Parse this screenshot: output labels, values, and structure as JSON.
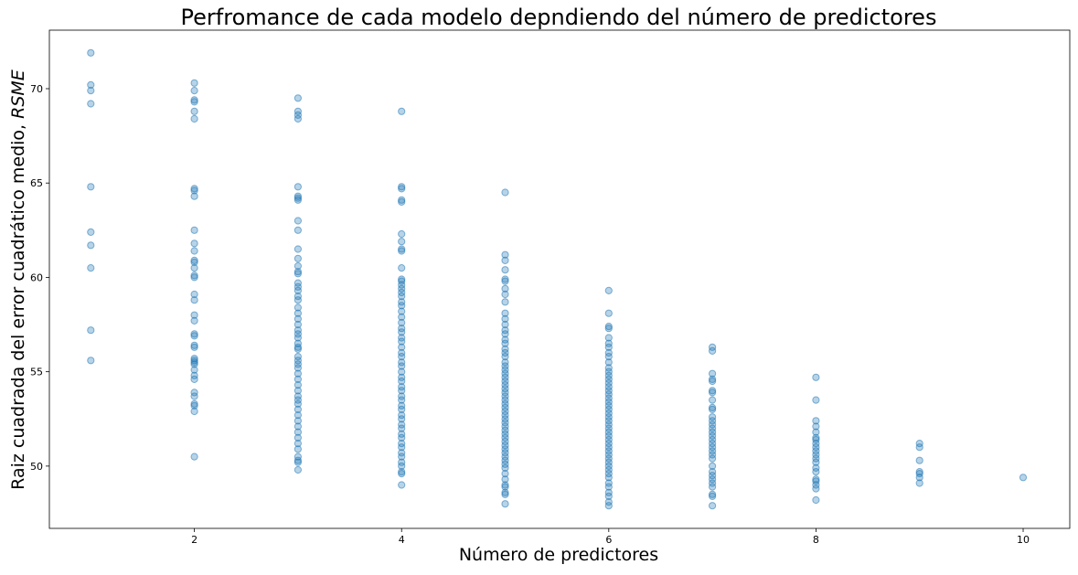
{
  "chart_data": {
    "type": "scatter",
    "title": "Perfromance de cada modelo depndiendo del número de predictores",
    "xlabel": "Número de predictores",
    "ylabel_main": "Raiz cuadrada del error cuadrático medio, ",
    "ylabel_italic": "RSME",
    "xlim": [
      0.6,
      10.45
    ],
    "ylim": [
      46.7,
      73.1
    ],
    "xticks": [
      2,
      4,
      6,
      8,
      10
    ],
    "yticks": [
      50,
      55,
      60,
      65,
      70
    ],
    "grid": false,
    "color": "#1f77b4",
    "points_by_x": [
      {
        "x": 1,
        "y": [
          71.9,
          70.2,
          69.9,
          69.2,
          64.8,
          62.4,
          61.7,
          60.5,
          57.2,
          55.6
        ]
      },
      {
        "x": 2,
        "y": [
          70.3,
          69.9,
          69.4,
          69.3,
          68.8,
          68.4,
          64.7,
          64.6,
          64.3,
          62.5,
          61.8,
          61.4,
          60.9,
          60.8,
          60.5,
          60.1,
          60.0,
          59.1,
          58.8,
          58.0,
          57.7,
          57.0,
          56.9,
          56.4,
          56.3,
          55.7,
          55.6,
          55.5,
          55.4,
          55.1,
          54.8,
          54.6,
          53.9,
          53.7,
          53.3,
          53.2,
          52.9,
          50.5
        ]
      },
      {
        "x": 3,
        "y": [
          69.5,
          68.8,
          68.6,
          68.4,
          64.8,
          64.3,
          64.2,
          64.1,
          63.0,
          62.5,
          61.5,
          61.0,
          60.6,
          60.3,
          60.2,
          59.7,
          59.5,
          59.3,
          59.0,
          58.8,
          58.4,
          58.1,
          57.8,
          57.5,
          57.2,
          57.0,
          56.8,
          56.5,
          56.3,
          56.2,
          55.8,
          55.6,
          55.4,
          55.2,
          54.9,
          54.6,
          54.3,
          54.0,
          53.7,
          53.5,
          53.3,
          53.0,
          52.7,
          52.4,
          52.1,
          51.8,
          51.5,
          51.2,
          50.9,
          50.5,
          50.3,
          50.2,
          49.8
        ]
      },
      {
        "x": 4,
        "y": [
          68.8,
          64.8,
          64.7,
          64.1,
          64.0,
          62.3,
          61.9,
          61.5,
          61.4,
          60.5,
          59.9,
          59.8,
          59.6,
          59.4,
          59.2,
          59.0,
          58.7,
          58.5,
          58.2,
          57.9,
          57.6,
          57.3,
          57.1,
          56.8,
          56.6,
          56.3,
          56.0,
          55.8,
          55.5,
          55.3,
          55.0,
          54.7,
          54.5,
          54.2,
          54.0,
          53.7,
          53.5,
          53.2,
          53.0,
          52.7,
          52.5,
          52.2,
          52.0,
          51.7,
          51.5,
          51.2,
          51.0,
          50.7,
          50.5,
          50.2,
          50.0,
          49.7,
          49.6,
          49.0
        ]
      },
      {
        "x": 5,
        "y": [
          64.5,
          61.2,
          60.9,
          60.4,
          59.9,
          59.8,
          59.4,
          59.1,
          58.7,
          58.1,
          57.8,
          57.5,
          57.2,
          57.0,
          56.7,
          56.5,
          56.2,
          56.0,
          55.8,
          55.5,
          55.3,
          55.1,
          54.9,
          54.7,
          54.5,
          54.3,
          54.1,
          53.9,
          53.7,
          53.5,
          53.3,
          53.1,
          52.9,
          52.7,
          52.5,
          52.3,
          52.1,
          51.9,
          51.7,
          51.5,
          51.3,
          51.1,
          50.9,
          50.7,
          50.5,
          50.3,
          50.1,
          49.9,
          49.6,
          49.3,
          49.0,
          48.9,
          48.6,
          48.5,
          48.0
        ]
      },
      {
        "x": 6,
        "y": [
          59.3,
          58.1,
          57.4,
          57.3,
          56.8,
          56.5,
          56.3,
          56.0,
          55.8,
          55.5,
          55.2,
          55.0,
          54.8,
          54.6,
          54.4,
          54.2,
          54.0,
          53.8,
          53.6,
          53.4,
          53.2,
          53.0,
          52.8,
          52.6,
          52.4,
          52.2,
          52.0,
          51.8,
          51.6,
          51.4,
          51.2,
          51.0,
          50.8,
          50.6,
          50.4,
          50.2,
          50.0,
          49.8,
          49.6,
          49.4,
          49.1,
          48.9,
          48.6,
          48.4,
          48.1,
          47.9
        ]
      },
      {
        "x": 7,
        "y": [
          56.3,
          56.1,
          54.9,
          54.6,
          54.5,
          54.0,
          53.9,
          53.5,
          53.1,
          53.0,
          52.6,
          52.4,
          52.2,
          52.0,
          51.8,
          51.6,
          51.4,
          51.2,
          51.0,
          50.8,
          50.6,
          50.4,
          50.0,
          49.7,
          49.5,
          49.3,
          49.1,
          48.9,
          48.5,
          48.4,
          47.9
        ]
      },
      {
        "x": 8,
        "y": [
          54.7,
          53.5,
          52.4,
          52.1,
          51.8,
          51.5,
          51.4,
          51.2,
          51.0,
          50.8,
          50.6,
          50.4,
          50.2,
          49.9,
          49.7,
          49.3,
          49.2,
          49.0,
          48.8,
          48.2
        ]
      },
      {
        "x": 9,
        "y": [
          51.2,
          51.0,
          50.3,
          49.7,
          49.6,
          49.4,
          49.1
        ]
      },
      {
        "x": 10,
        "y": [
          49.4
        ]
      }
    ]
  }
}
